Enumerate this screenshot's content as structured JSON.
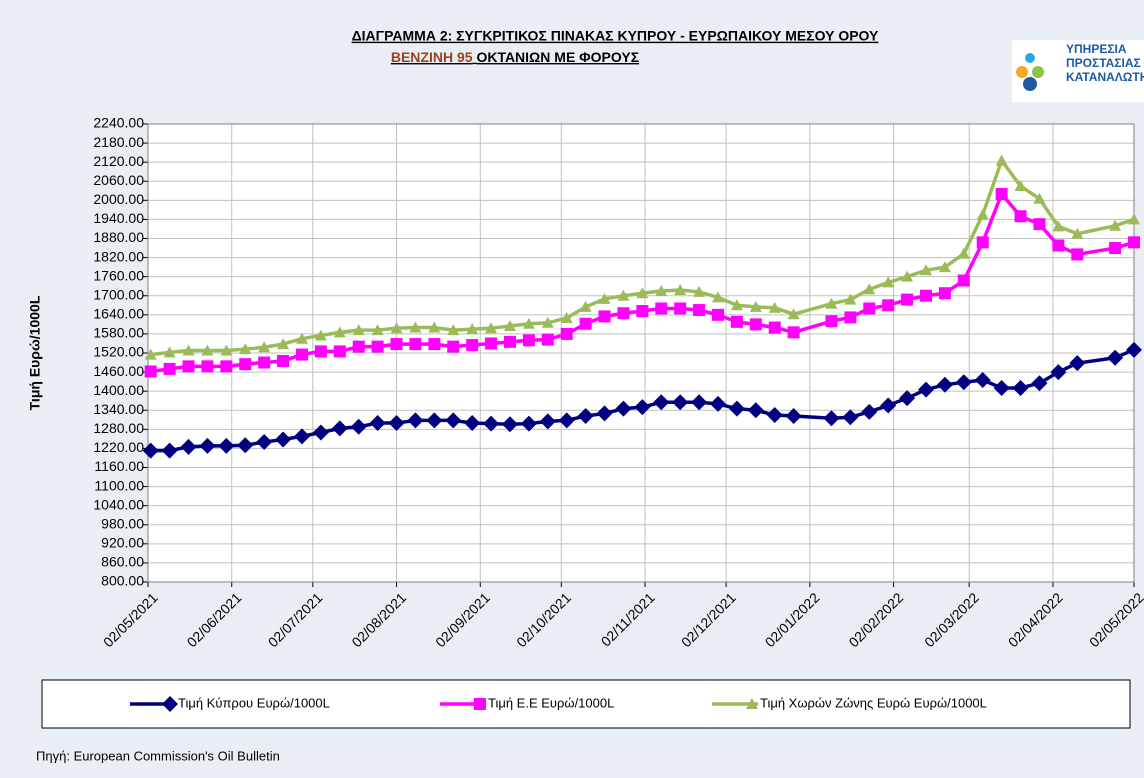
{
  "chart_data": {
    "type": "line",
    "title": "ΔΙΑΓΡΑΜΜΑ 2: ΣΥΓΚΡΙΤΙΚΟΣ ΠΙΝΑΚΑΣ ΚΥΠΡΟΥ - ΕΥΡΩΠΑΙΚΟΥ ΜΕΣΟΥ ΟΡΟΥ",
    "subtitle": [
      "ΒΕΝΖΙΝΗ 95",
      "ΟΚΤΑΝΙΩΝ ΜΕ ΦΟΡΟΥΣ"
    ],
    "y_label": "Τιμή Ευρώ/1000L",
    "source": "Πηγή: European Commission's Oil Bulletin",
    "x": [
      "03/05/2021",
      "10/05/2021",
      "17/05/2021",
      "24/05/2021",
      "31/05/2021",
      "07/06/2021",
      "14/06/2021",
      "21/06/2021",
      "28/06/2021",
      "05/07/2021",
      "12/07/2021",
      "19/07/2021",
      "26/07/2021",
      "02/08/2021",
      "09/08/2021",
      "16/08/2021",
      "23/08/2021",
      "30/08/2021",
      "06/09/2021",
      "13/09/2021",
      "20/09/2021",
      "27/09/2021",
      "04/10/2021",
      "11/10/2021",
      "18/10/2021",
      "25/10/2021",
      "01/11/2021",
      "08/11/2021",
      "15/11/2021",
      "22/11/2021",
      "29/11/2021",
      "06/12/2021",
      "13/12/2021",
      "20/12/2021",
      "27/12/2021",
      "10/01/2022",
      "17/01/2022",
      "24/01/2022",
      "31/01/2022",
      "07/02/2022",
      "14/02/2022",
      "21/02/2022",
      "28/02/2022",
      "07/03/2022",
      "14/03/2022",
      "21/03/2022",
      "28/03/2022",
      "04/04/2022",
      "11/04/2022",
      "25/04/2022",
      "02/05/2022"
    ],
    "series": [
      {
        "name": "Τιμή Κύπρου Ευρώ/1000L",
        "color": "#000080",
        "marker": "diamond",
        "values": [
          1213,
          1213,
          1225,
          1228,
          1228,
          1230,
          1240,
          1248,
          1258,
          1270,
          1283,
          1288,
          1300,
          1300,
          1308,
          1308,
          1308,
          1300,
          1298,
          1296,
          1298,
          1305,
          1308,
          1322,
          1330,
          1345,
          1350,
          1365,
          1365,
          1365,
          1360,
          1345,
          1340,
          1325,
          1322,
          1315,
          1318,
          1335,
          1355,
          1378,
          1405,
          1420,
          1428,
          1435,
          1410,
          1410,
          1425,
          1460,
          1488,
          1505,
          1530
        ]
      },
      {
        "name": "Τιμή Ε.Ε Ευρώ/1000L",
        "color": "#ff00ff",
        "marker": "square",
        "values": [
          1462,
          1470,
          1478,
          1478,
          1478,
          1485,
          1490,
          1495,
          1515,
          1525,
          1525,
          1540,
          1540,
          1548,
          1548,
          1548,
          1540,
          1545,
          1550,
          1555,
          1560,
          1562,
          1580,
          1612,
          1635,
          1645,
          1652,
          1660,
          1660,
          1655,
          1640,
          1618,
          1610,
          1600,
          1585,
          1620,
          1632,
          1660,
          1670,
          1688,
          1700,
          1708,
          1748,
          1868,
          2020,
          1950,
          1925,
          1858,
          1830,
          1850,
          1868
        ]
      },
      {
        "name": "Τιμή Χωρών Ζώνης Ευρώ Ευρώ/1000L",
        "color": "#9bbb59",
        "marker": "triangle",
        "values": [
          1515,
          1522,
          1528,
          1528,
          1528,
          1532,
          1538,
          1548,
          1565,
          1575,
          1585,
          1592,
          1592,
          1598,
          1600,
          1600,
          1592,
          1595,
          1598,
          1605,
          1612,
          1615,
          1630,
          1665,
          1690,
          1700,
          1708,
          1715,
          1718,
          1712,
          1695,
          1670,
          1665,
          1662,
          1642,
          1675,
          1688,
          1720,
          1742,
          1760,
          1780,
          1790,
          1832,
          1955,
          2125,
          2045,
          2005,
          1918,
          1895,
          1920,
          1940
        ]
      }
    ],
    "xlim": [
      "02/05/2021",
      "02/05/2022"
    ],
    "xticks": [
      "02/05/2021",
      "02/06/2021",
      "02/07/2021",
      "02/08/2021",
      "02/09/2021",
      "02/10/2021",
      "02/11/2021",
      "02/12/2021",
      "02/01/2022",
      "02/02/2022",
      "02/03/2022",
      "02/04/2022",
      "02/05/2022"
    ],
    "ylim": [
      800,
      2240
    ],
    "yticks": [
      {
        "value": 800,
        "label": "800.00"
      },
      {
        "value": 860,
        "label": "860.00"
      },
      {
        "value": 920,
        "label": "920.00"
      },
      {
        "value": 980,
        "label": "980.00"
      },
      {
        "value": 1040,
        "label": "1040.00"
      },
      {
        "value": 1100,
        "label": "1100.00"
      },
      {
        "value": 1160,
        "label": "1160.00"
      },
      {
        "value": 1220,
        "label": "1220.00"
      },
      {
        "value": 1280,
        "label": "1280.00"
      },
      {
        "value": 1340,
        "label": "1340.00"
      },
      {
        "value": 1400,
        "label": "1400.00"
      },
      {
        "value": 1460,
        "label": "1460.00"
      },
      {
        "value": 1520,
        "label": "1520.00"
      },
      {
        "value": 1580,
        "label": "1580.00"
      },
      {
        "value": 1640,
        "label": "1640.00"
      },
      {
        "value": 1700,
        "label": "1700.00"
      },
      {
        "value": 1760,
        "label": "1760.00"
      },
      {
        "value": 1820,
        "label": "1820.00"
      },
      {
        "value": 1880,
        "label": "1880.00"
      },
      {
        "value": 1940,
        "label": "1940.00"
      },
      {
        "value": 2000,
        "label": "2000.00"
      },
      {
        "value": 2060,
        "label": "2060.00"
      },
      {
        "value": 2120,
        "label": "2120.00"
      },
      {
        "value": 2180,
        "label": "2180.00"
      },
      {
        "value": 2240,
        "label": "2240.00"
      }
    ],
    "grid": true,
    "legend": "bottom"
  },
  "logo": [
    "ΥΠΗΡΕΣΙΑ",
    "ΠΡΟΣΤΑΣΙΑΣ",
    "ΚΑΤΑΝΑΛΩΤΗ"
  ]
}
